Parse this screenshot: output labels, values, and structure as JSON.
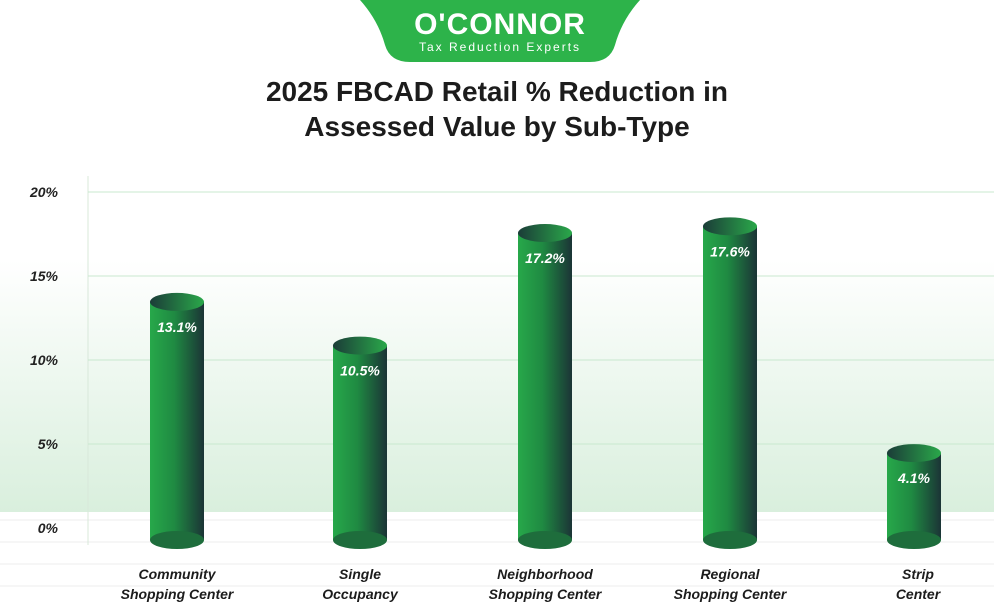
{
  "logo": {
    "name": "O'CONNOR",
    "tagline": "Tax Reduction Experts",
    "color": "#2db34a"
  },
  "chart_data": {
    "type": "bar",
    "title": "2025 FBCAD Retail % Reduction in Assessed Value by Sub-Type",
    "title_lines": [
      "2025 FBCAD Retail % Reduction in",
      "Assessed Value by Sub-Type"
    ],
    "categories": [
      [
        "Community",
        "Shopping Center"
      ],
      [
        "Single",
        "Occupancy"
      ],
      [
        "Neighborhood",
        "Shopping Center"
      ],
      [
        "Regional",
        "Shopping Center"
      ],
      [
        "Strip",
        "Center"
      ]
    ],
    "values": [
      13.1,
      10.5,
      17.2,
      17.6,
      4.1
    ],
    "data_labels": [
      "13.1%",
      "10.5%",
      "17.2%",
      "17.6%",
      "4.1%"
    ],
    "ylim": [
      0,
      20
    ],
    "yticks": [
      0,
      5,
      10,
      15,
      20
    ],
    "ytick_labels": [
      "0%",
      "5%",
      "10%",
      "15%",
      "20%"
    ],
    "xlabel": "",
    "ylabel": "",
    "grid": true,
    "bar_style": "3d cylinder",
    "colors": {
      "bar_light": "#27a84a",
      "bar_dark": "#1b3436",
      "grid": "#c9e8cf"
    }
  }
}
